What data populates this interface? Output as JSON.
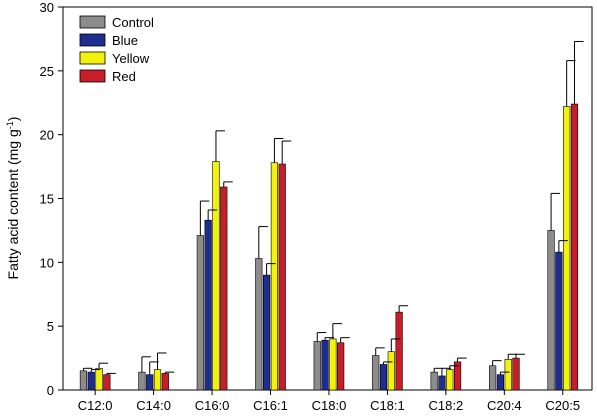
{
  "chart_data": {
    "type": "bar",
    "title": "",
    "xlabel": "",
    "ylabel": "Fatty acid content (mg g",
    "ylabel_sup": "-1",
    "ylabel_end": ")",
    "ylim": [
      0,
      30
    ],
    "yticks": [
      0,
      5,
      10,
      15,
      20,
      25,
      30
    ],
    "grid": false,
    "legend_position": "top-left",
    "categories": [
      "C12:0",
      "C14:0",
      "C16:0",
      "C16:1",
      "C18:0",
      "C18:1",
      "C18:2",
      "C20:4",
      "C20:5"
    ],
    "series": [
      {
        "name": "Control",
        "color": "#8c8c8c",
        "values": [
          1.5,
          1.4,
          12.1,
          10.3,
          3.8,
          2.7,
          1.4,
          1.9,
          12.5
        ],
        "errors": [
          0.2,
          1.2,
          2.7,
          2.5,
          0.7,
          0.6,
          0.3,
          0.4,
          2.9
        ]
      },
      {
        "name": "Blue",
        "color": "#1f2d8f",
        "values": [
          1.4,
          1.2,
          13.3,
          9.0,
          3.9,
          2.0,
          1.1,
          1.2,
          10.8
        ],
        "errors": [
          0.2,
          1.0,
          0.8,
          0.9,
          0.2,
          0.2,
          0.6,
          0.2,
          0.9
        ]
      },
      {
        "name": "Yellow",
        "color": "#f2f20a",
        "values": [
          1.7,
          1.6,
          17.9,
          17.8,
          4.0,
          3.0,
          1.6,
          2.4,
          22.2
        ],
        "errors": [
          0.4,
          1.3,
          2.4,
          1.9,
          1.2,
          1.0,
          0.3,
          0.4,
          3.6
        ]
      },
      {
        "name": "Red",
        "color": "#c81e2a",
        "values": [
          1.2,
          1.3,
          15.9,
          17.7,
          3.7,
          6.1,
          2.2,
          2.5,
          22.4
        ],
        "errors": [
          0.1,
          0.1,
          0.4,
          1.8,
          0.4,
          0.5,
          0.3,
          0.3,
          4.9
        ]
      }
    ]
  }
}
